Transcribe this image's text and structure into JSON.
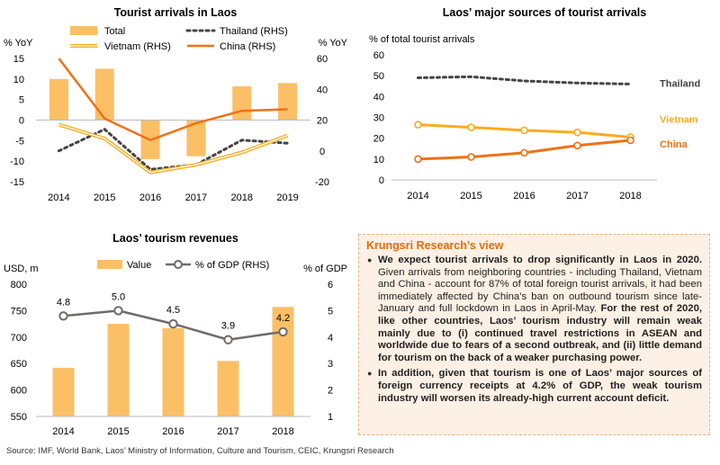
{
  "colors": {
    "bar": "#fbbf66",
    "bar_edge": "#f7b043",
    "orange": "#f07114",
    "amber": "#fbab1e",
    "dots": "#444444",
    "gdp_line": "#706b6b"
  },
  "chart_data": [
    {
      "id": "arrivals",
      "type": "bar+line",
      "title": "Tourist arrivals in Laos",
      "ylabel_left": "% YoY",
      "ylabel_right": "% YoY",
      "ylim_left": [
        -15,
        15
      ],
      "ylim_right": [
        -20,
        60
      ],
      "left_ticks": [
        "15",
        "10",
        "5",
        "0",
        "-5",
        "-10",
        "-15"
      ],
      "right_ticks": [
        "60",
        "40",
        "20",
        "0",
        "-20"
      ],
      "categories": [
        "2014",
        "2015",
        "2016",
        "2017",
        "2018",
        "2019"
      ],
      "legend": {
        "bar": "Total",
        "thailand": "Thailand (RHS)",
        "vietnam": "Vietnam (RHS)",
        "china": "China (RHS)"
      },
      "series": [
        {
          "name": "Total",
          "axis": "left",
          "type": "bar",
          "values": [
            10,
            12.5,
            -9.5,
            -8.8,
            8.2,
            9
          ]
        },
        {
          "name": "Thailand (RHS)",
          "axis": "right",
          "type": "dotted",
          "values": [
            0,
            14,
            -12,
            -9,
            7,
            5
          ]
        },
        {
          "name": "Vietnam (RHS)",
          "axis": "right",
          "type": "double",
          "values": [
            17,
            8,
            -14,
            -9,
            -1,
            10
          ]
        },
        {
          "name": "China (RHS)",
          "axis": "right",
          "type": "line",
          "values": [
            60,
            21,
            7,
            18,
            26,
            27
          ]
        }
      ]
    },
    {
      "id": "sources",
      "type": "line",
      "title": "Laos’ major sources of tourist arrivals",
      "ylabel": "% of total tourist arrivals",
      "ylim": [
        0,
        60
      ],
      "ticks": [
        "60",
        "50",
        "40",
        "30",
        "20",
        "10",
        "0"
      ],
      "categories": [
        "2014",
        "2015",
        "2016",
        "2017",
        "2018"
      ],
      "series": [
        {
          "name": "Thailand",
          "values": [
            49,
            49.5,
            47.5,
            46.5,
            46
          ]
        },
        {
          "name": "Vietnam",
          "values": [
            26.5,
            25.2,
            23.8,
            22.8,
            20.5
          ]
        },
        {
          "name": "China",
          "values": [
            10,
            11,
            13,
            16.5,
            19
          ]
        }
      ]
    },
    {
      "id": "revenues",
      "type": "bar+line",
      "title": "Laos’ tourism revenues",
      "ylabel_left": "USD, m",
      "ylabel_right": "% of GDP",
      "ylim_left": [
        550,
        800
      ],
      "ylim_right": [
        1,
        6
      ],
      "left_ticks": [
        "800",
        "750",
        "700",
        "650",
        "600",
        "550"
      ],
      "right_ticks": [
        "6",
        "5",
        "4",
        "3",
        "2",
        "1"
      ],
      "categories": [
        "2014",
        "2015",
        "2016",
        "2017",
        "2018"
      ],
      "legend": {
        "bar": "Value",
        "line": "% of GDP (RHS)"
      },
      "series": [
        {
          "name": "Value",
          "axis": "left",
          "type": "bar",
          "values": [
            642,
            725,
            717,
            655,
            757
          ]
        },
        {
          "name": "% of GDP (RHS)",
          "axis": "right",
          "type": "line",
          "values": [
            4.8,
            5.0,
            4.5,
            3.9,
            4.2
          ],
          "labels": [
            "4.8",
            "5.0",
            "4.5",
            "3.9",
            "4.2"
          ]
        }
      ]
    }
  ],
  "view": {
    "title": "Krungsri Research’s view",
    "p1_bold": "We expect tourist arrivals to drop significantly in Laos in 2020.",
    "p1_text": " Given arrivals from neighboring countries -  including Thailand, Vietnam and China - account for 87% of total foreign tourist arrivals, it had been  immediately affected by China’s ban on outbound tourism since late-January and full lockdown in Laos in April-May.",
    "p1_bold2": " For the rest of 2020, like other countries, Laos’ tourism industry will remain weak mainly due to (i) continued travel restrictions in ASEAN and worldwide due to fears of a second outbreak, and (ii) little demand for tourism on the back of a weaker purchasing power.",
    "p2_bold": "In addition, given that tourism is one of Laos’ major sources of foreign currency receipts at 4.2% of GDP, the weak tourism industry will worsen its already-high current account deficit."
  },
  "source": "Source: IMF, World Bank, Laos’ Ministry of Information, Culture and Tourism, CEIC, Krungsri Research"
}
